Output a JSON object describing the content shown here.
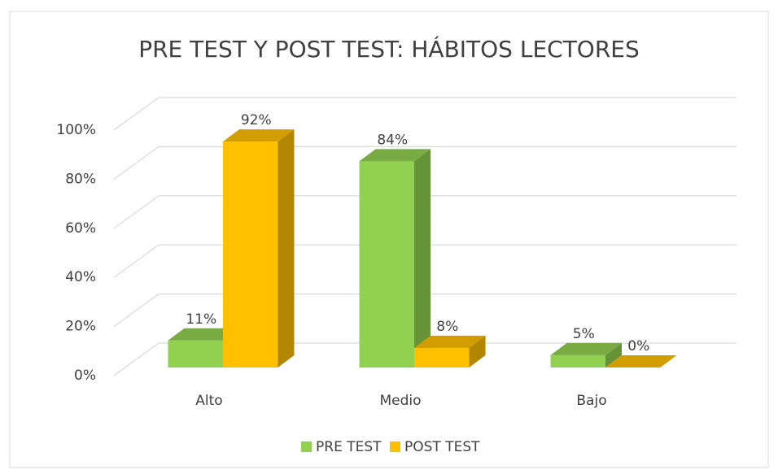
{
  "chart_data": {
    "type": "bar3d",
    "title": "PRE TEST Y POST TEST: HÁBITOS LECTORES",
    "categories": [
      "Alto",
      "Medio",
      "Bajo"
    ],
    "series": [
      {
        "name": "PRE TEST",
        "color": "#92d050",
        "values": [
          11,
          84,
          5
        ],
        "value_labels": [
          "11%",
          "84%",
          "5%"
        ]
      },
      {
        "name": "POST TEST",
        "color": "#ffc000",
        "values": [
          92,
          8,
          0
        ],
        "value_labels": [
          "92%",
          "8%",
          "0%"
        ]
      }
    ],
    "ylim": [
      0,
      100
    ],
    "yticks": [
      {
        "value": 0,
        "label": "0%"
      },
      {
        "value": 20,
        "label": "20%"
      },
      {
        "value": 40,
        "label": "40%"
      },
      {
        "value": 60,
        "label": "60%"
      },
      {
        "value": 80,
        "label": "80%"
      },
      {
        "value": 100,
        "label": "100%"
      }
    ],
    "grid": true,
    "legend": "bottom"
  }
}
